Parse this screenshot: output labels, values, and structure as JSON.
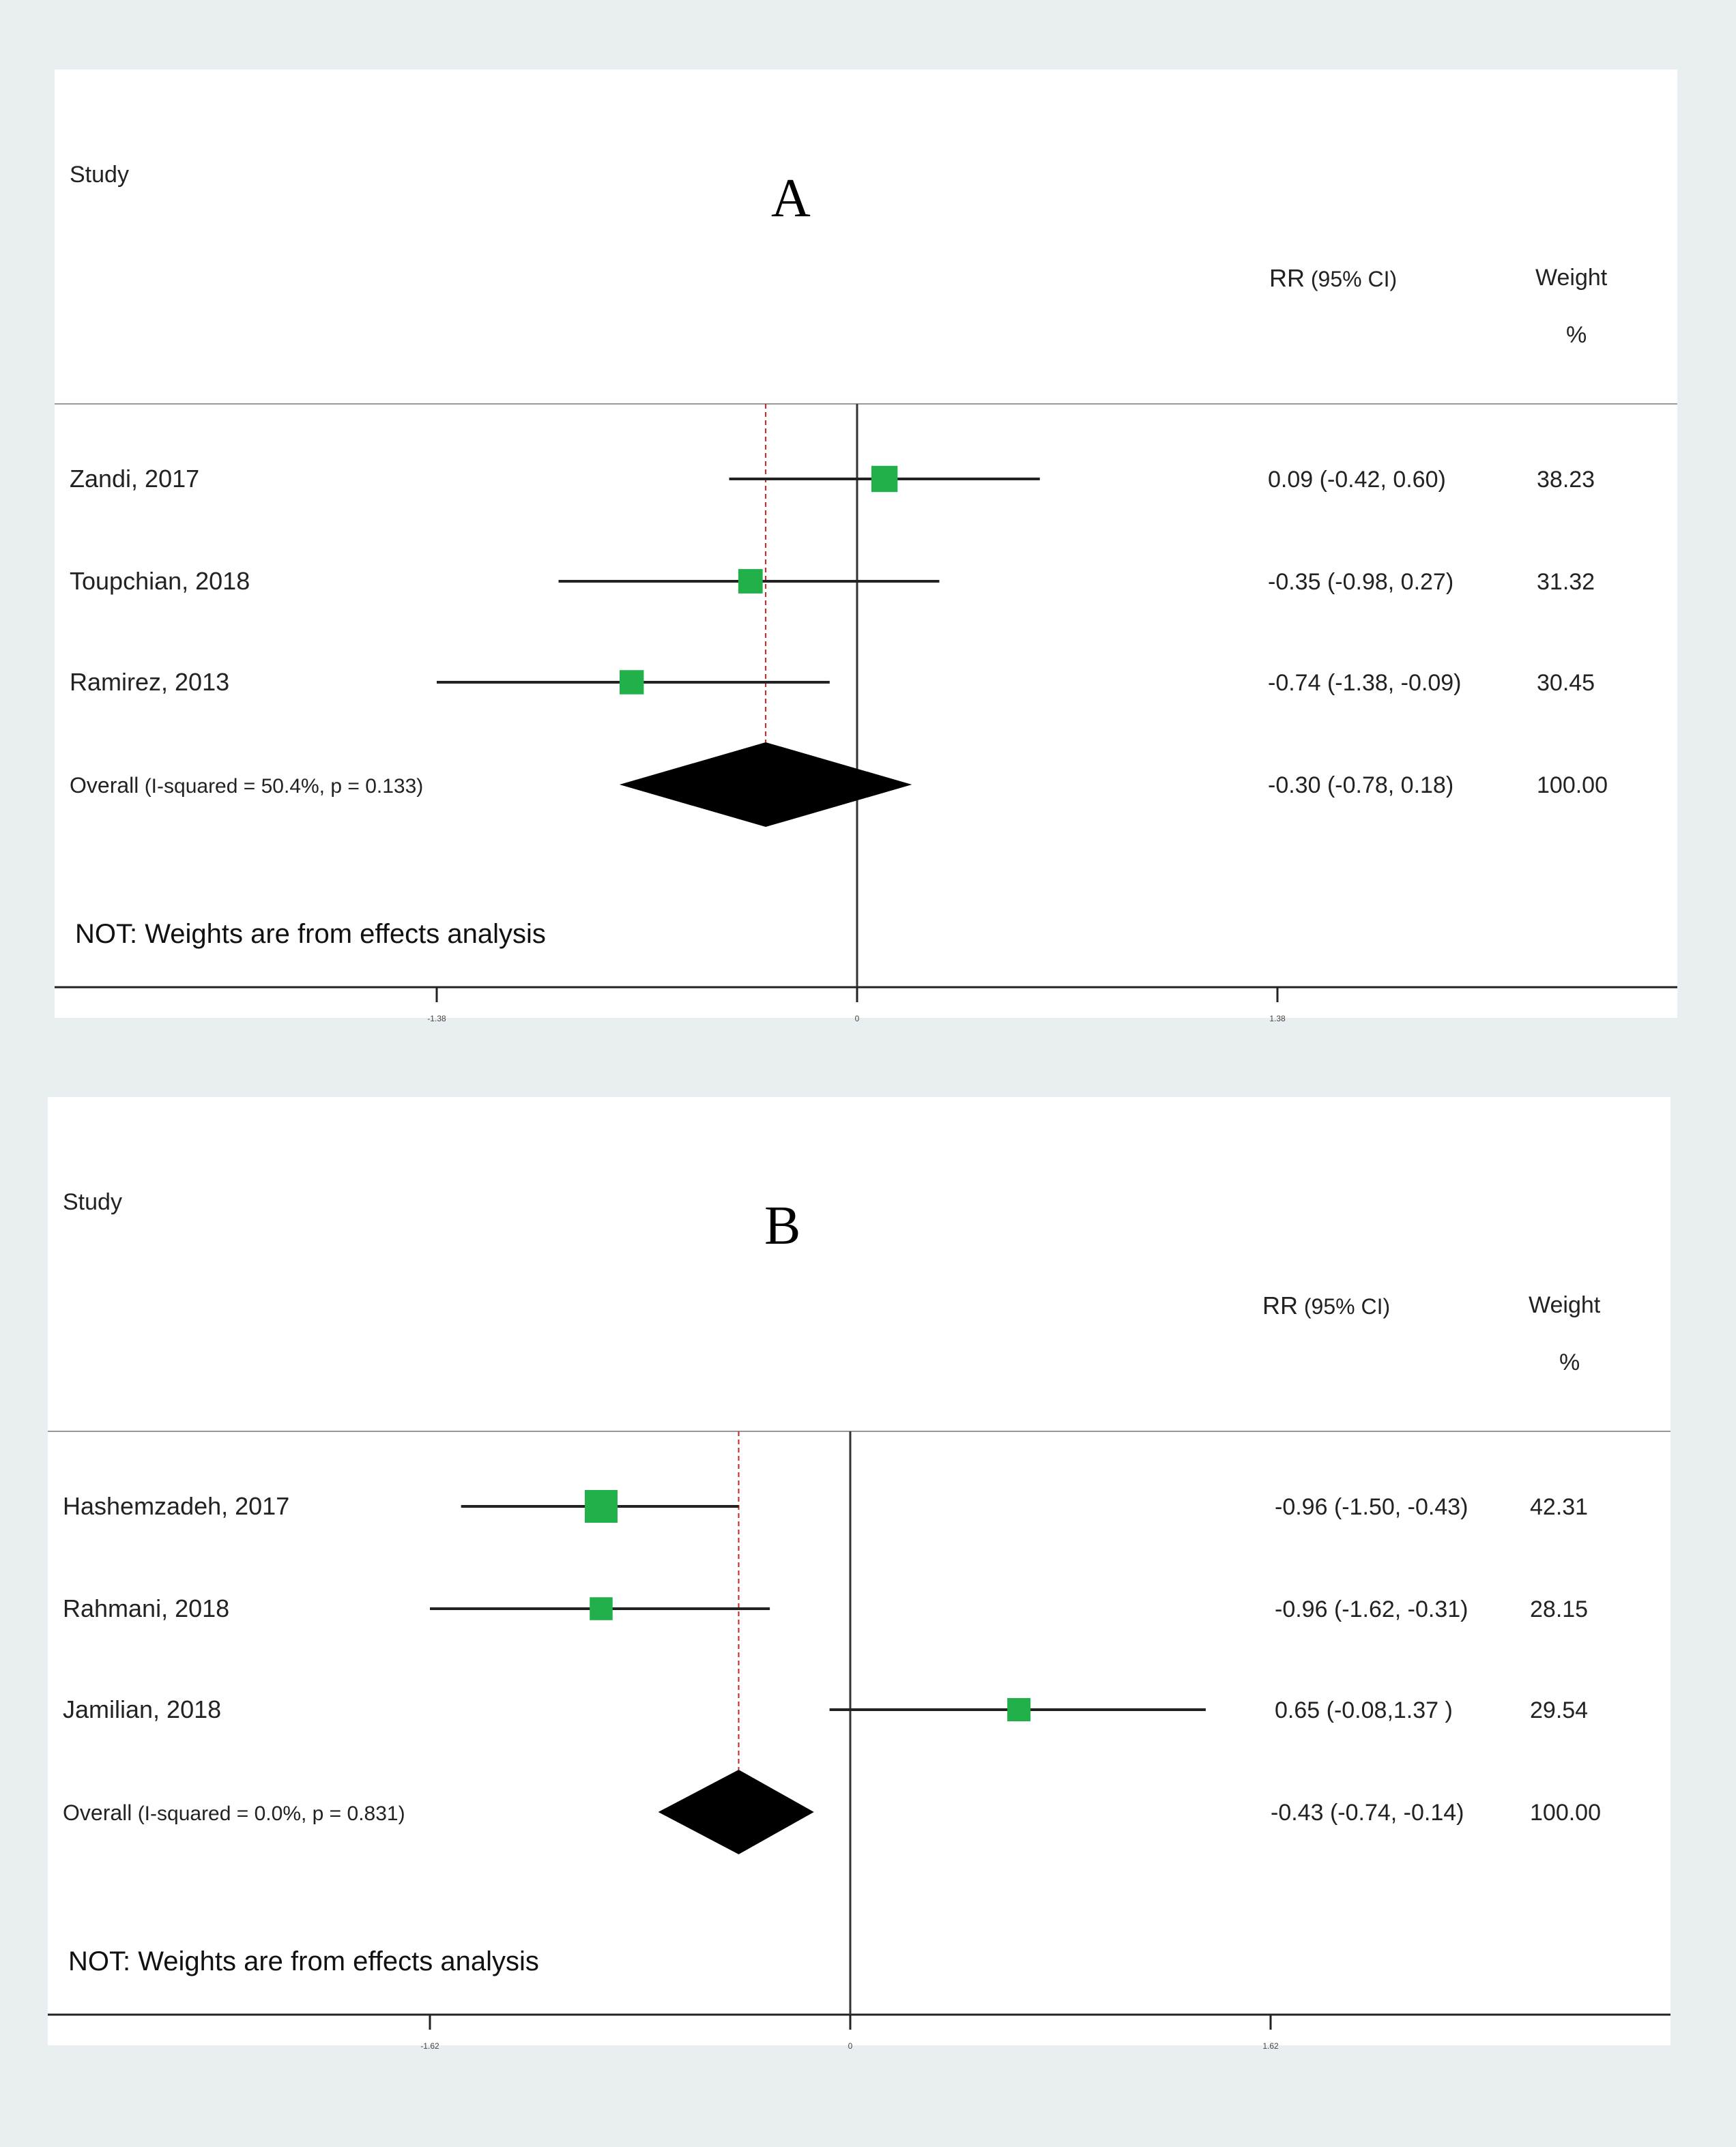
{
  "chart_data": [
    {
      "type": "forest",
      "panel_label": "A",
      "study_header": "Study",
      "effect_header_main": "RR",
      "effect_header_sub": "(95% CI)",
      "weight_header": "Weight",
      "weight_unit": "%",
      "note": "NOT: Weights are from effects analysis",
      "xlim": [
        -1.38,
        1.38
      ],
      "ticks": [
        {
          "value": -1.38,
          "label": "-1.38"
        },
        {
          "value": 0,
          "label": "0"
        },
        {
          "value": 1.38,
          "label": "1.38"
        }
      ],
      "studies": [
        {
          "name": "Zandi, 2017",
          "effect": 0.09,
          "lower": -0.42,
          "upper": 0.6,
          "ci_text": "0.09 (-0.42, 0.60)",
          "weight": 38.23,
          "weight_text": "38.23"
        },
        {
          "name": "Toupchian, 2018",
          "effect": -0.35,
          "lower": -0.98,
          "upper": 0.27,
          "ci_text": "-0.35 (-0.98, 0.27)",
          "weight": 31.32,
          "weight_text": "31.32"
        },
        {
          "name": "Ramirez, 2013",
          "effect": -0.74,
          "lower": -1.38,
          "upper": -0.09,
          "ci_text": "-0.74 (-1.38, -0.09)",
          "weight": 30.45,
          "weight_text": "30.45"
        }
      ],
      "overall": {
        "label": "Overall",
        "stats": "(I-squared = 50.4%, p = 0.133)",
        "effect": -0.3,
        "lower": -0.78,
        "upper": 0.18,
        "ci_text": "-0.30 (-0.78, 0.18)",
        "weight_text": "100.00"
      },
      "colors": {
        "marker": "#22b04b",
        "diamond": "#000000",
        "overall_line": "#cc2222",
        "ci_line": "#222222"
      }
    },
    {
      "type": "forest",
      "panel_label": "B",
      "study_header": "Study",
      "effect_header_main": "RR",
      "effect_header_sub": "(95% CI)",
      "weight_header": "Weight",
      "weight_unit": "%",
      "note": "NOT: Weights are from effects analysis",
      "xlim": [
        -1.62,
        1.62
      ],
      "ticks": [
        {
          "value": -1.62,
          "label": "-1.62"
        },
        {
          "value": 0,
          "label": "0"
        },
        {
          "value": 1.62,
          "label": "1.62"
        }
      ],
      "studies": [
        {
          "name": "Hashemzadeh, 2017",
          "effect": -0.96,
          "lower": -1.5,
          "upper": -0.43,
          "ci_text": "-0.96 (-1.50, -0.43)",
          "weight": 42.31,
          "weight_text": "42.31"
        },
        {
          "name": "Rahmani, 2018",
          "effect": -0.96,
          "lower": -1.62,
          "upper": -0.31,
          "ci_text": "-0.96 (-1.62, -0.31)",
          "weight": 28.15,
          "weight_text": "28.15"
        },
        {
          "name": "Jamilian, 2018",
          "effect": 0.65,
          "lower": -0.08,
          "upper": 1.37,
          "ci_text": "0.65 (-0.08,1.37 )",
          "weight": 29.54,
          "weight_text": "29.54"
        }
      ],
      "overall": {
        "label": "Overall",
        "stats": "(I-squared = 0.0%, p = 0.831)",
        "effect": -0.43,
        "lower": -0.74,
        "upper": -0.14,
        "ci_text": "-0.43 (-0.74, -0.14)",
        "weight_text": "100.00"
      },
      "colors": {
        "marker": "#22b04b",
        "diamond": "#000000",
        "overall_line": "#cc2222",
        "ci_line": "#222222"
      }
    }
  ]
}
